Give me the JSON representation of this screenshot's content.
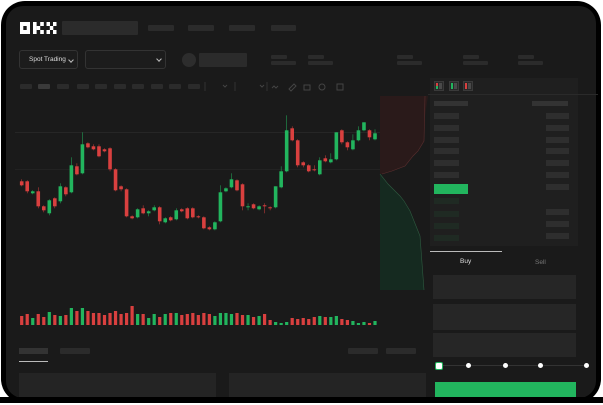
{
  "brand": {
    "logo_text": "OKX"
  },
  "controls": {
    "market_dropdown_label": "Spot Trading"
  },
  "order_form": {
    "buy_tab": "Buy",
    "sell_tab": "Sell",
    "active_tab": "Buy",
    "slider_level_percent": 0
  },
  "colors": {
    "up": "#22b55e",
    "down": "#d9403f",
    "background": "#1a1a1a",
    "accent": "#22b55e"
  },
  "icons": [
    "chevron-down-icon",
    "line-chart-icon",
    "pencil-icon",
    "camera-icon",
    "settings-icon",
    "fullscreen-icon",
    "orderbook-both-icon",
    "orderbook-bids-icon",
    "orderbook-asks-icon"
  ],
  "chart_data": {
    "type": "candlestick",
    "ohlc": [
      [
        62,
        64,
        57,
        58
      ],
      [
        62,
        63,
        50,
        52
      ],
      [
        50,
        53,
        49,
        52
      ],
      [
        52,
        56,
        35,
        37
      ],
      [
        37,
        38,
        31,
        33
      ],
      [
        30,
        44,
        28,
        43
      ],
      [
        45,
        46,
        35,
        37
      ],
      [
        42,
        60,
        40,
        57
      ],
      [
        56,
        57,
        47,
        49
      ],
      [
        51,
        86,
        50,
        78
      ],
      [
        77,
        80,
        68,
        69
      ],
      [
        70,
        111,
        69,
        99
      ],
      [
        100,
        101,
        95,
        96
      ],
      [
        97,
        99,
        93,
        94
      ],
      [
        97,
        99,
        86,
        87
      ],
      [
        94,
        95,
        91,
        92
      ],
      [
        95,
        96,
        72,
        74
      ],
      [
        74,
        75,
        52,
        53
      ],
      [
        57,
        58,
        52,
        54
      ],
      [
        54,
        55,
        26,
        27
      ],
      [
        27,
        28,
        24,
        25
      ],
      [
        26,
        35,
        25,
        34
      ],
      [
        35,
        38,
        29,
        30
      ],
      [
        30,
        33,
        27,
        32
      ],
      [
        33,
        38,
        32,
        36
      ],
      [
        36,
        37,
        19,
        22
      ],
      [
        21,
        26,
        20,
        25
      ],
      [
        26,
        27,
        22,
        23
      ],
      [
        24,
        35,
        23,
        33
      ],
      [
        34,
        35,
        31,
        32
      ],
      [
        35,
        36,
        24,
        25
      ],
      [
        35,
        36,
        25,
        26
      ],
      [
        27,
        28,
        25,
        26
      ],
      [
        26,
        27,
        14,
        15
      ],
      [
        16,
        17,
        13,
        14
      ],
      [
        14,
        22,
        13,
        21
      ],
      [
        22,
        58,
        21,
        51
      ],
      [
        52,
        56,
        51,
        55
      ],
      [
        56,
        70,
        55,
        64
      ],
      [
        63,
        64,
        52,
        53
      ],
      [
        59,
        60,
        33,
        37
      ],
      [
        36,
        40,
        33,
        37
      ],
      [
        39,
        40,
        34,
        35
      ],
      [
        34,
        38,
        33,
        37
      ],
      [
        38,
        40,
        30,
        37
      ],
      [
        36,
        37,
        33,
        35
      ],
      [
        36,
        57,
        35,
        57
      ],
      [
        56,
        77,
        55,
        72
      ],
      [
        72,
        128,
        71,
        113
      ],
      [
        115,
        117,
        102,
        103
      ],
      [
        103,
        104,
        76,
        78
      ],
      [
        81,
        82,
        76,
        78
      ],
      [
        78,
        79,
        71,
        72
      ],
      [
        74,
        78,
        72,
        73
      ],
      [
        69,
        86,
        68,
        83
      ],
      [
        85,
        88,
        81,
        82
      ],
      [
        81,
        90,
        80,
        84
      ],
      [
        84,
        111,
        83,
        111
      ],
      [
        113,
        114,
        99,
        101
      ],
      [
        101,
        102,
        93,
        96
      ],
      [
        94,
        109,
        93,
        103
      ],
      [
        103,
        117,
        102,
        113
      ],
      [
        113,
        121,
        112,
        121
      ],
      [
        113,
        114,
        103,
        106
      ],
      [
        104,
        114,
        103,
        110
      ]
    ],
    "volume": [
      9,
      11,
      7,
      11,
      8,
      13,
      10,
      9,
      10,
      17,
      14,
      17,
      14,
      12,
      12,
      10,
      12,
      14,
      11,
      12,
      19,
      11,
      11,
      7,
      11,
      8,
      11,
      12,
      12,
      10,
      11,
      12,
      10,
      12,
      11,
      9,
      12,
      12,
      11,
      12,
      10,
      10,
      8,
      9,
      11,
      5,
      3,
      2,
      3,
      7,
      6,
      7,
      6,
      8,
      9,
      8,
      8,
      9,
      6,
      5,
      4,
      2,
      3,
      2,
      4
    ]
  }
}
